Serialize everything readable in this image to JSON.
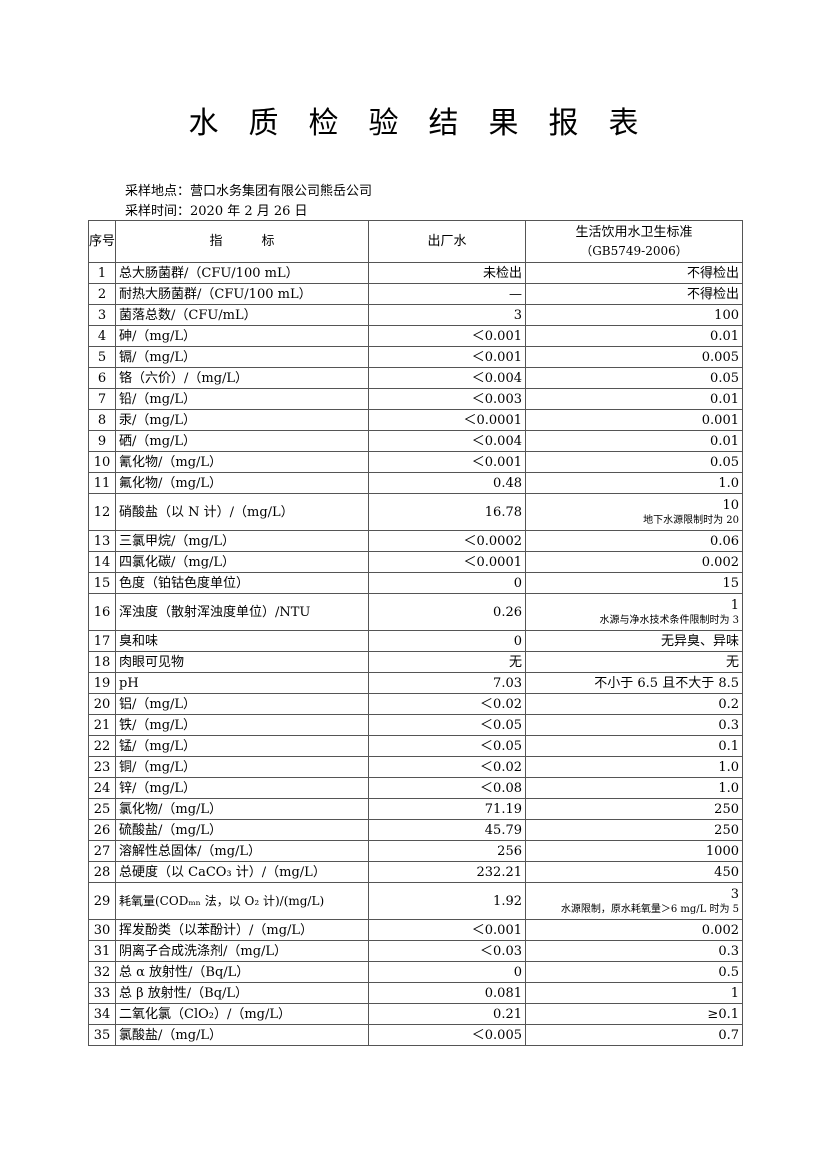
{
  "title": "水质检验结果报表",
  "sampling_location": "采样地点：营口水务集团有限公司熊岳公司",
  "sampling_time": "采样时间：2020 年 2 月 26 日",
  "headers": {
    "seq": "序号",
    "indicator": "指　　　标",
    "factory_water": "出厂水",
    "standard_line1": "生活饮用水卫生标准",
    "standard_line2": "（GB5749-2006）"
  },
  "rows": [
    {
      "no": "1",
      "indicator": "总大肠菌群/（CFU/100 mL）",
      "result": "未检出",
      "standard": "不得检出"
    },
    {
      "no": "2",
      "indicator": "耐热大肠菌群/（CFU/100 mL）",
      "result": "—",
      "standard": "不得检出"
    },
    {
      "no": "3",
      "indicator": "菌落总数/（CFU/mL）",
      "result": "3",
      "standard": "100"
    },
    {
      "no": "4",
      "indicator": "砷/（mg/L）",
      "result": "＜0.001",
      "standard": "0.01"
    },
    {
      "no": "5",
      "indicator": "镉/（mg/L）",
      "result": "＜0.001",
      "standard": "0.005"
    },
    {
      "no": "6",
      "indicator": "铬（六价）/（mg/L）",
      "result": "＜0.004",
      "standard": "0.05"
    },
    {
      "no": "7",
      "indicator": "铅/（mg/L）",
      "result": "＜0.003",
      "standard": "0.01"
    },
    {
      "no": "8",
      "indicator": "汞/（mg/L）",
      "result": "＜0.0001",
      "standard": "0.001"
    },
    {
      "no": "9",
      "indicator": "硒/（mg/L）",
      "result": "＜0.004",
      "standard": "0.01"
    },
    {
      "no": "10",
      "indicator": "氰化物/（mg/L）",
      "result": "＜0.001",
      "standard": "0.05"
    },
    {
      "no": "11",
      "indicator": "氟化物/（mg/L）",
      "result": "0.48",
      "standard": "1.0"
    },
    {
      "no": "12",
      "indicator": "硝酸盐（以 N 计）/（mg/L）",
      "result": "16.78",
      "standard": "10",
      "note": "地下水源限制时为 20"
    },
    {
      "no": "13",
      "indicator": "三氯甲烷/（mg/L）",
      "result": "＜0.0002",
      "standard": "0.06"
    },
    {
      "no": "14",
      "indicator": "四氯化碳/（mg/L）",
      "result": "＜0.0001",
      "standard": "0.002"
    },
    {
      "no": "15",
      "indicator": "色度（铂钴色度单位）",
      "result": "0",
      "standard": "15"
    },
    {
      "no": "16",
      "indicator": "浑浊度（散射浑浊度单位）/NTU",
      "result": "0.26",
      "standard": "1",
      "note": "水源与净水技术条件限制时为 3"
    },
    {
      "no": "17",
      "indicator": "臭和味",
      "result": "0",
      "standard": "无异臭、异味"
    },
    {
      "no": "18",
      "indicator": "肉眼可见物",
      "result": "无",
      "standard": "无"
    },
    {
      "no": "19",
      "indicator": "pH",
      "result": "7.03",
      "standard": "不小于 6.5 且不大于 8.5"
    },
    {
      "no": "20",
      "indicator": "铝/（mg/L）",
      "result": "＜0.02",
      "standard": "0.2"
    },
    {
      "no": "21",
      "indicator": "铁/（mg/L）",
      "result": "＜0.05",
      "standard": "0.3"
    },
    {
      "no": "22",
      "indicator": "锰/（mg/L）",
      "result": "＜0.05",
      "standard": "0.1"
    },
    {
      "no": "23",
      "indicator": "铜/（mg/L）",
      "result": "＜0.02",
      "standard": "1.0"
    },
    {
      "no": "24",
      "indicator": "锌/（mg/L）",
      "result": "＜0.08",
      "standard": "1.0"
    },
    {
      "no": "25",
      "indicator": "氯化物/（mg/L）",
      "result": "71.19",
      "standard": "250"
    },
    {
      "no": "26",
      "indicator": "硫酸盐/（mg/L）",
      "result": "45.79",
      "standard": "250"
    },
    {
      "no": "27",
      "indicator": "溶解性总固体/（mg/L）",
      "result": "256",
      "standard": "1000"
    },
    {
      "no": "28",
      "indicator": "总硬度（以 CaCO₃ 计）/（mg/L）",
      "result": "232.21",
      "standard": "450"
    },
    {
      "no": "29",
      "indicator": "耗氧量(CODₘₙ 法，以 O₂ 计)/(mg/L)",
      "result": "1.92",
      "standard": "3",
      "note": "水源限制，原水耗氧量＞6 mg/L 时为 5"
    },
    {
      "no": "30",
      "indicator": "挥发酚类（以苯酚计）/（mg/L）",
      "result": "＜0.001",
      "standard": "0.002"
    },
    {
      "no": "31",
      "indicator": "阴离子合成洗涤剂/（mg/L）",
      "result": "＜0.03",
      "standard": "0.3"
    },
    {
      "no": "32",
      "indicator": "总 α 放射性/（Bq/L）",
      "result": "0",
      "standard": "0.5"
    },
    {
      "no": "33",
      "indicator": "总 β 放射性/（Bq/L）",
      "result": "0.081",
      "standard": "1"
    },
    {
      "no": "34",
      "indicator": "二氧化氯（ClO₂）/（mg/L）",
      "result": "0.21",
      "standard": "≥0.1"
    },
    {
      "no": "35",
      "indicator": "氯酸盐/（mg/L）",
      "result": "＜0.005",
      "standard": "0.7"
    }
  ]
}
